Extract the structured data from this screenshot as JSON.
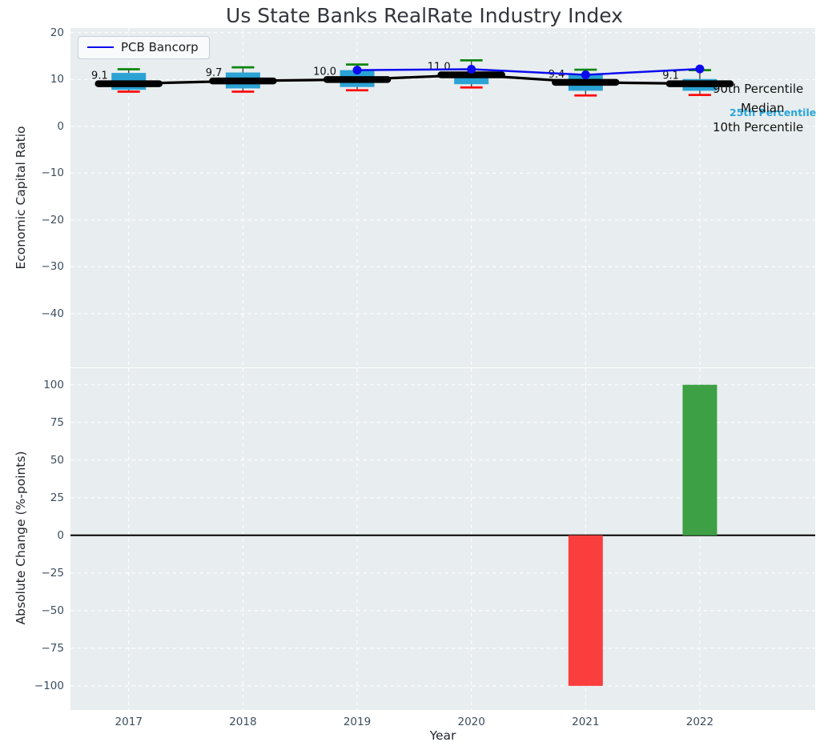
{
  "title": "Us State Banks RealRate Industry Index",
  "colors": {
    "box_fill": "#2ba3d4",
    "whisker_high_cap": "#0c870c",
    "whisker_low_cap": "#fd0d0d",
    "median_line": "#000000",
    "pcb_line": "#0b0bee",
    "bar_negative": "#fa3d3d",
    "bar_positive": "#3da044",
    "axes_background": "#e8edef",
    "grid": "#ffffff",
    "tick_text": "#3c4e60",
    "percentile_25_label": "#2aa6d9"
  },
  "chart_data": [
    {
      "type": "boxplot+line",
      "title": "Us State Banks RealRate Industry Index",
      "ylabel": "Economic Capital Ratio",
      "x": [
        2017,
        2018,
        2019,
        2020,
        2021,
        2022
      ],
      "yticks": [
        20,
        10,
        0,
        -10,
        -20,
        -30,
        -40
      ],
      "ylim": [
        -51.5,
        21
      ],
      "xlim": [
        2016.49,
        2023.01
      ],
      "grid": "white dashed, on",
      "legend": {
        "label": "PCB Bancorp",
        "position": "upper left"
      },
      "boxes": {
        "whisker_low": [
          7.4,
          7.4,
          7.7,
          8.3,
          6.6,
          6.7
        ],
        "q1": [
          7.8,
          8.1,
          8.4,
          9.0,
          7.6,
          7.6
        ],
        "median": [
          9.1,
          9.7,
          10.0,
          11.0,
          9.4,
          9.1
        ],
        "q3": [
          11.4,
          11.5,
          12.0,
          11.3,
          11.0,
          10.1
        ],
        "whisker_high": [
          12.2,
          12.6,
          13.2,
          14.1,
          12.1,
          12.0
        ]
      },
      "median_labels": [
        "9.1",
        "9.7",
        "10.0",
        "11.0",
        "9.4",
        "9.1"
      ],
      "series": [
        {
          "name": "PCB Bancorp",
          "x": [
            2019,
            2020,
            2021,
            2022
          ],
          "values": [
            12.0,
            12.2,
            11.0,
            12.25
          ]
        }
      ],
      "right_labels": {
        "p90": "90th Percentile",
        "median": "Median",
        "p25": "25th Percentile",
        "p10": "10th Percentile"
      }
    },
    {
      "type": "bar",
      "ylabel": "Absolute Change (%-points)",
      "xlabel": "Year",
      "x": [
        2017,
        2018,
        2019,
        2020,
        2021,
        2022
      ],
      "yticks": [
        100,
        75,
        50,
        25,
        0,
        -25,
        -50,
        -75,
        -100
      ],
      "ylim": [
        -116,
        111
      ],
      "xlim": [
        2016.49,
        2023.01
      ],
      "zero_line": true,
      "bars": [
        {
          "year": 2021,
          "value": -100,
          "color": "#fa3d3d"
        },
        {
          "year": 2022,
          "value": 100,
          "color": "#3da044"
        }
      ]
    }
  ]
}
